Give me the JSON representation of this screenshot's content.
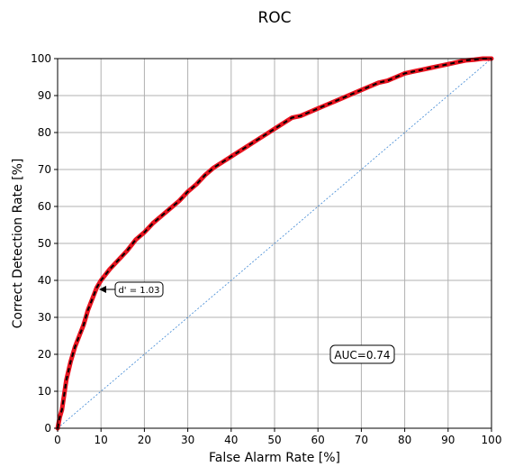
{
  "chart_data": {
    "type": "line",
    "title": "ROC",
    "xlabel": "False Alarm Rate [%]",
    "ylabel": "Correct Detection Rate [%]",
    "xlim": [
      0,
      100
    ],
    "ylim": [
      0,
      100
    ],
    "xticks": [
      "0",
      "10",
      "20",
      "30",
      "40",
      "50",
      "60",
      "70",
      "80",
      "90",
      "100"
    ],
    "yticks": [
      "0",
      "10",
      "20",
      "30",
      "40",
      "50",
      "60",
      "70",
      "80",
      "90",
      "100"
    ],
    "grid": true,
    "series": [
      {
        "style": "red-thick-with-black-dashes",
        "x": [
          0,
          0.5,
          1,
          1.5,
          2,
          3,
          4,
          5,
          6,
          7,
          8,
          9,
          10,
          12,
          14,
          16,
          18,
          20,
          22,
          24,
          26,
          28,
          30,
          32,
          34,
          36,
          38,
          40,
          42,
          44,
          46,
          48,
          50,
          52,
          54,
          56,
          58,
          60,
          62,
          64,
          66,
          68,
          70,
          72,
          74,
          76,
          78,
          80,
          82,
          84,
          86,
          88,
          90,
          92,
          94,
          96,
          98,
          100
        ],
        "y": [
          0,
          3,
          5,
          9,
          13,
          18,
          22,
          25,
          28,
          32,
          35,
          38,
          40,
          43,
          45.5,
          48,
          51,
          53,
          55.5,
          57.5,
          59.5,
          61.5,
          64,
          66,
          68.5,
          70.5,
          72,
          73.5,
          75,
          76.5,
          78,
          79.5,
          81,
          82.5,
          84,
          84.5,
          85.5,
          86.5,
          87.5,
          88.5,
          89.5,
          90.5,
          91.5,
          92.5,
          93.5,
          94,
          95,
          96,
          96.5,
          97,
          97.5,
          98,
          98.5,
          99,
          99.5,
          99.7,
          100,
          100
        ]
      },
      {
        "style": "chance-diagonal-dotted-blue",
        "x": [
          0,
          100
        ],
        "y": [
          0,
          100
        ]
      }
    ],
    "annotations": [
      {
        "text": "d' = 1.03",
        "arrow_to": [
          9.5,
          37.5
        ]
      },
      {
        "text": "AUC=0.74"
      }
    ]
  },
  "colors": {
    "roc_line": "#e8131f",
    "roc_dash": "#000000",
    "diagonal": "#3f88d4",
    "grid": "#b0b0b0"
  }
}
